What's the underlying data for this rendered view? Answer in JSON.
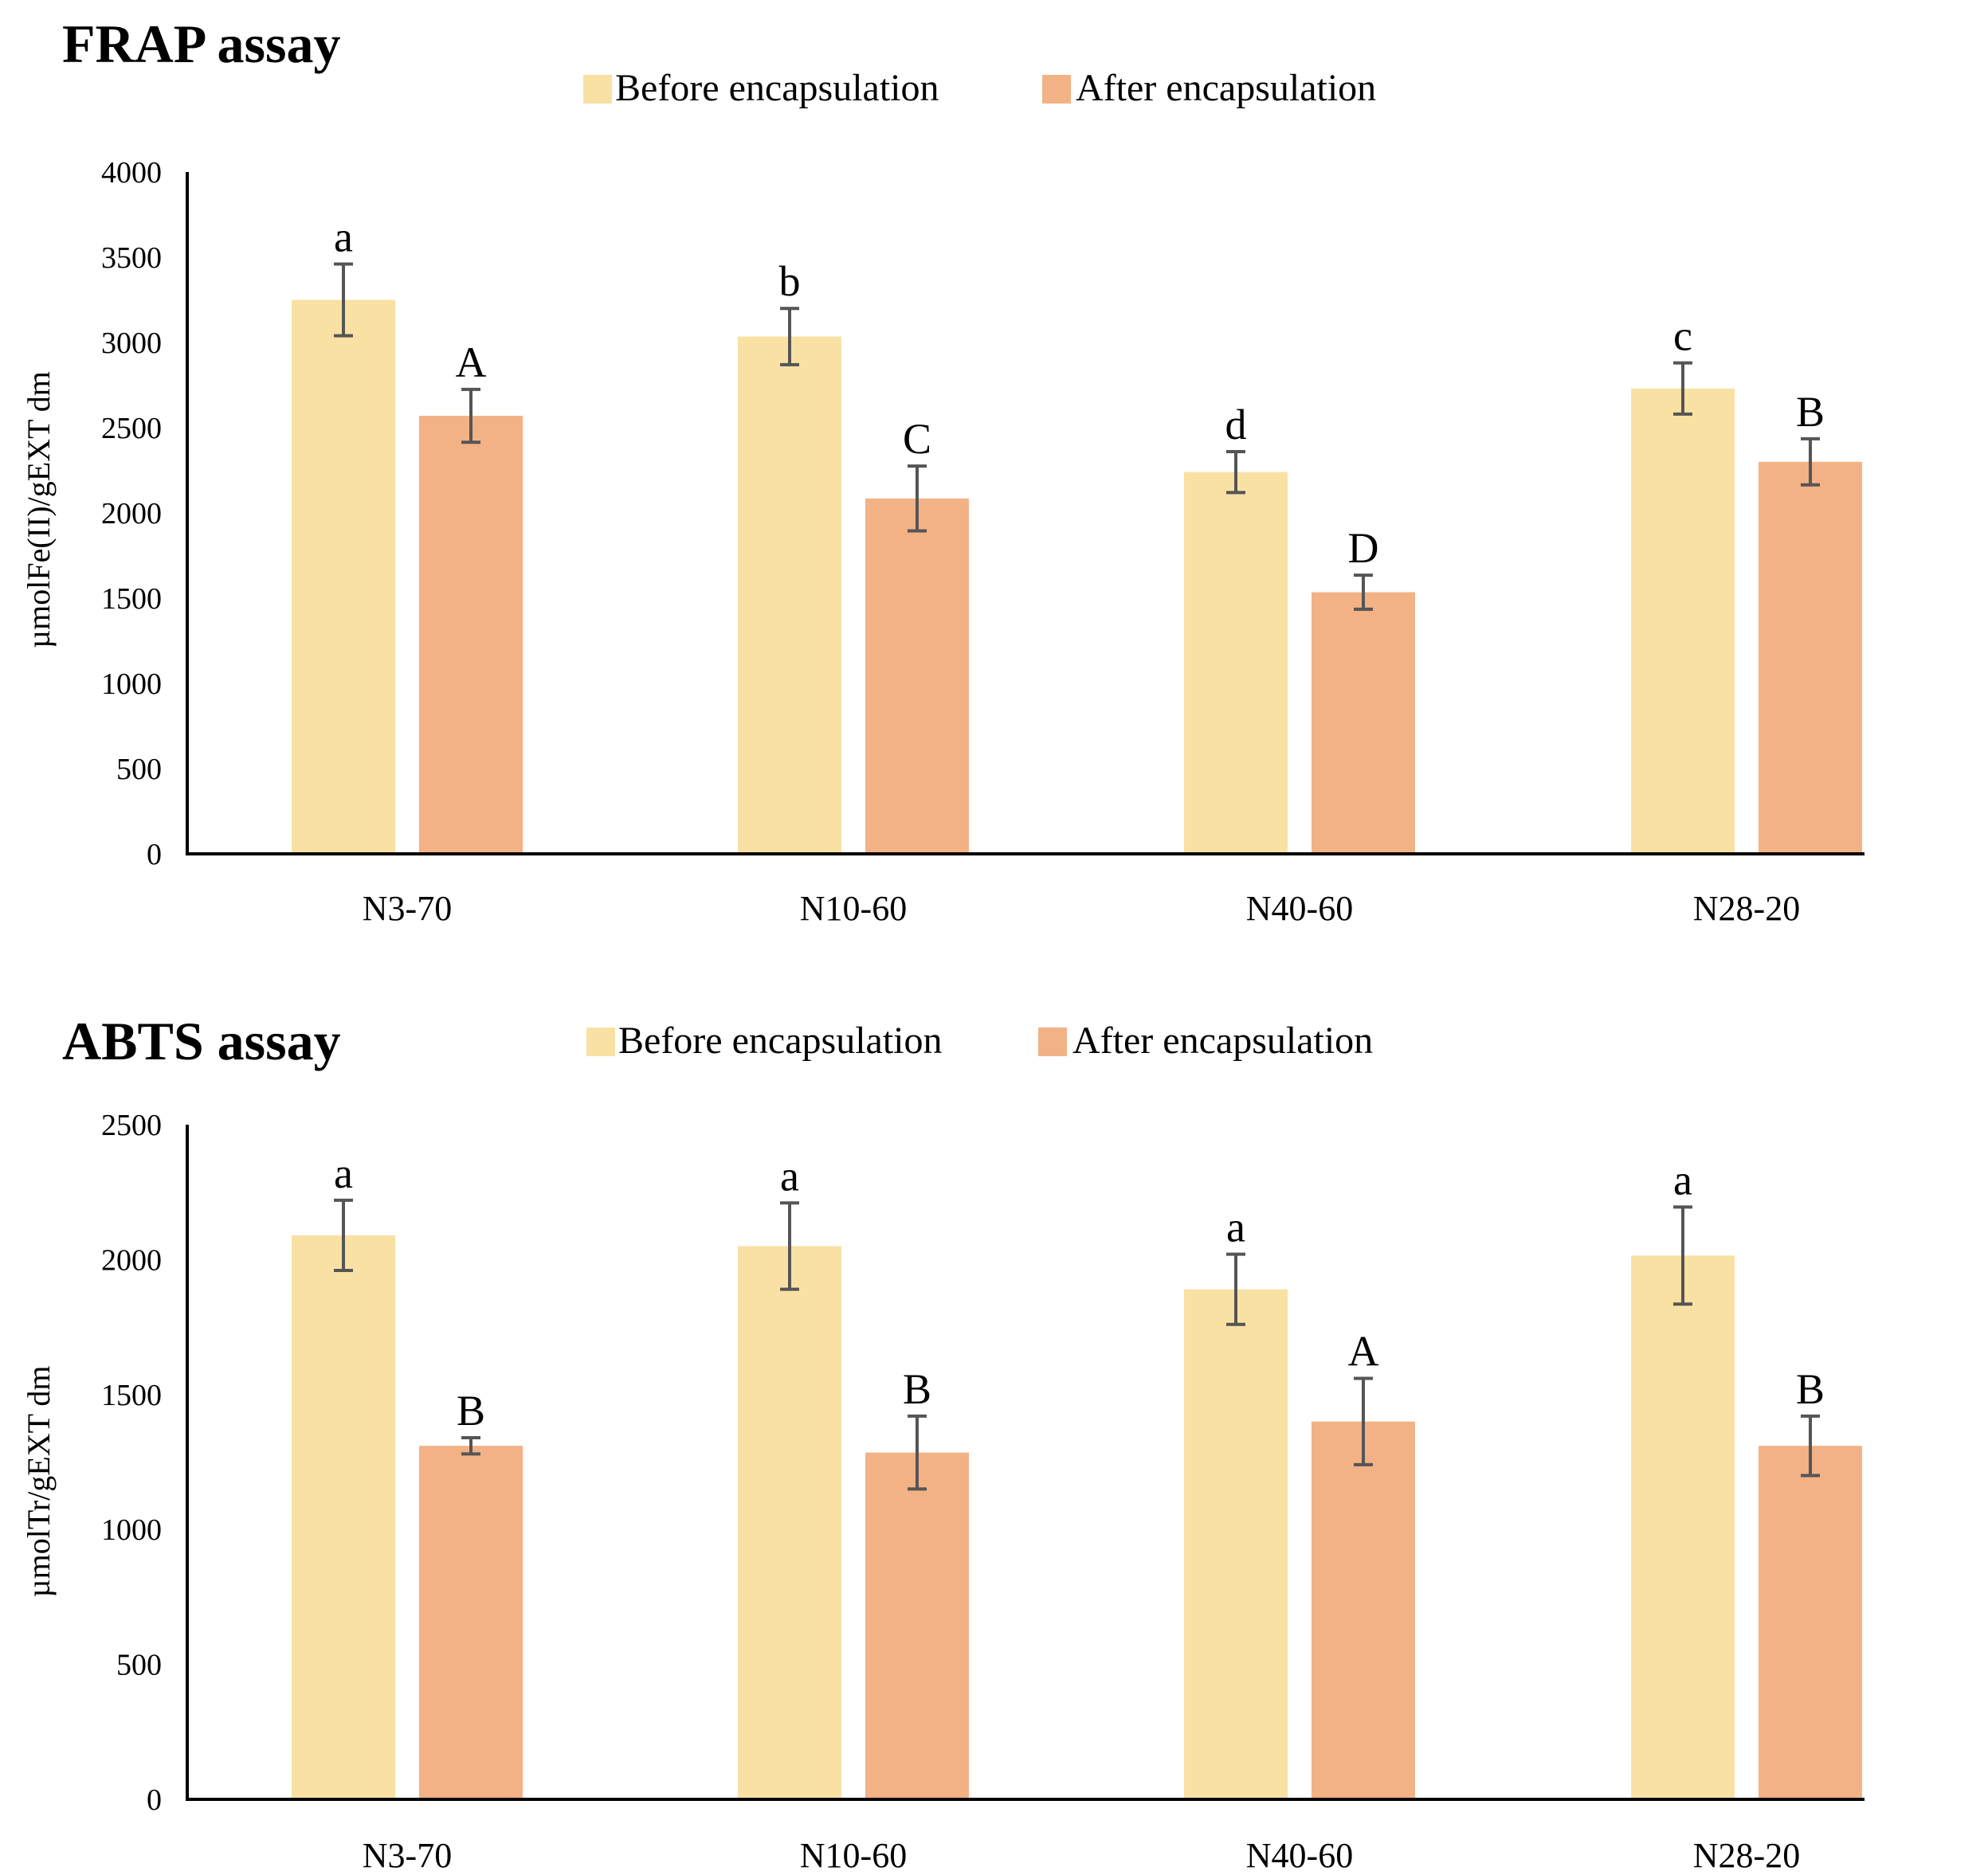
{
  "chart_data": [
    {
      "type": "bar",
      "title": "FRAP assay",
      "ylabel": "µmolFe(II)/gEXT dm",
      "xlabel": "",
      "ylim": [
        0,
        4000
      ],
      "yticks": [
        0,
        500,
        1000,
        1500,
        2000,
        2500,
        3000,
        3500,
        4000
      ],
      "legend_position": "top",
      "categories": [
        "N3-70",
        "N10-60",
        "N40-60",
        "N28-20"
      ],
      "series": [
        {
          "name": "Before encapsulation",
          "color": "#F9E1A4",
          "values": [
            3250,
            3035,
            2240,
            2730
          ],
          "errors": [
            210,
            165,
            120,
            150
          ],
          "labels": [
            "a",
            "b",
            "d",
            "c"
          ]
        },
        {
          "name": "After encapsulation",
          "color": "#F2B285",
          "values": [
            2570,
            2085,
            1535,
            2300
          ],
          "errors": [
            155,
            190,
            100,
            135
          ],
          "labels": [
            "A",
            "C",
            "D",
            "B"
          ]
        }
      ]
    },
    {
      "type": "bar",
      "title": "ABTS assay",
      "ylabel": "µmolTr/gEXT dm",
      "xlabel": "",
      "ylim": [
        0,
        2500
      ],
      "yticks": [
        0,
        500,
        1000,
        1500,
        2000,
        2500
      ],
      "legend_position": "top",
      "categories": [
        "N3-70",
        "N10-60",
        "N40-60",
        "N28-20"
      ],
      "series": [
        {
          "name": "Before encapsulation",
          "color": "#F9E1A4",
          "values": [
            2090,
            2050,
            1890,
            2015
          ],
          "errors": [
            130,
            160,
            130,
            180
          ],
          "labels": [
            "a",
            "a",
            "a",
            "a"
          ]
        },
        {
          "name": "After encapsulation",
          "color": "#F2B285",
          "values": [
            1310,
            1285,
            1400,
            1310
          ],
          "errors": [
            30,
            135,
            160,
            110
          ],
          "labels": [
            "B",
            "B",
            "A",
            "B"
          ]
        }
      ]
    }
  ],
  "colors": {
    "before": "#F9E1A4",
    "after": "#F2B285",
    "error_bar": "#555555",
    "axis": "#000000"
  }
}
